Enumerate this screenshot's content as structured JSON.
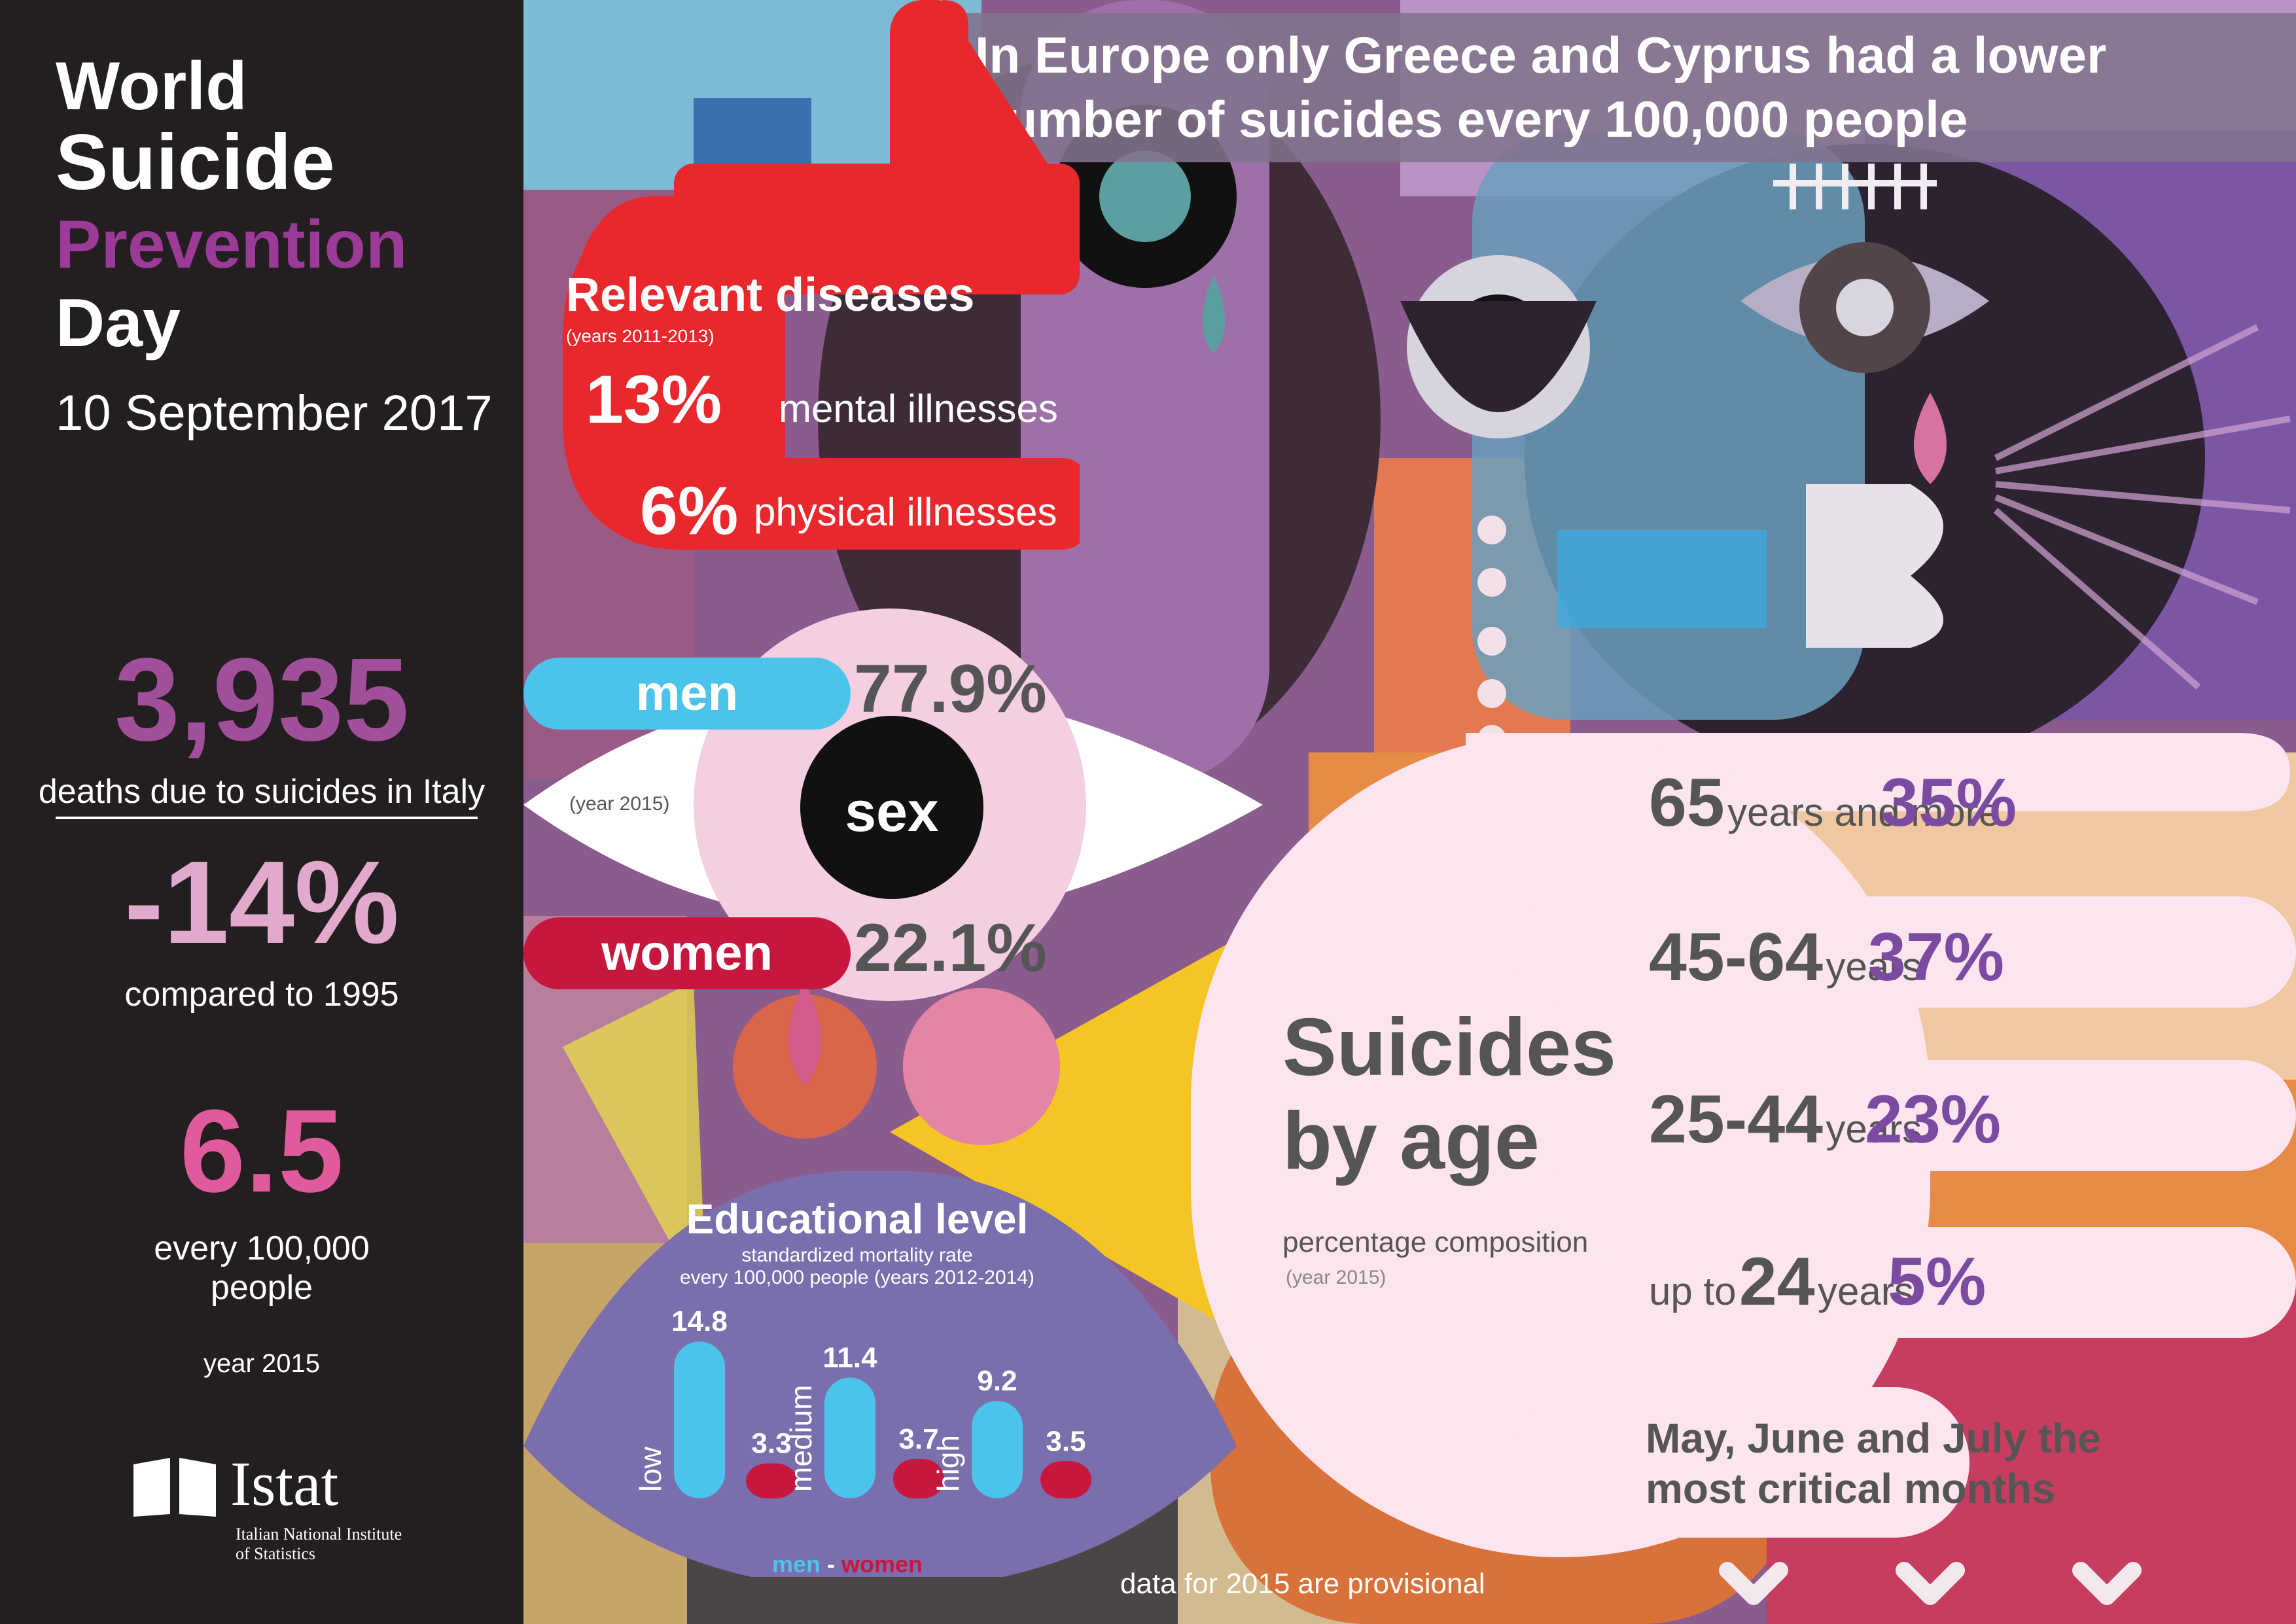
{
  "sidebar": {
    "title_line1": "World",
    "title_line2": "Suicide",
    "title_line3": "Prevention",
    "title_line4": "Day",
    "date": "10 September 2017",
    "deaths_value": "3,935",
    "deaths_label": "deaths due to suicides in Italy",
    "change_value": "-14%",
    "change_label": "compared to 1995",
    "rate_value": "6.5",
    "rate_label_line1": "every 100,000",
    "rate_label_line2": "people",
    "rate_year": "year 2015",
    "logo_name": "Istat",
    "logo_sub_line1": "Italian National Institute",
    "logo_sub_line2": "of Statistics"
  },
  "headline": {
    "line1": "In Europe only Greece and Cyprus had a lower",
    "line2": "number of suicides every 100,000 people"
  },
  "diseases": {
    "title": "Relevant diseases",
    "years": "(years 2011-2013)",
    "mental_value": "13%",
    "mental_label": "mental illnesses",
    "physical_value": "6%",
    "physical_label": "physical illnesses"
  },
  "sex": {
    "center_label": "sex",
    "year": "(year 2015)",
    "men_label": "men",
    "men_value": "77.9%",
    "women_label": "women",
    "women_value": "22.1%"
  },
  "education": {
    "title": "Educational level",
    "subtitle_line1": "standardized mortality rate",
    "subtitle_line2": "every 100,000 people (years 2012-2014)",
    "legend_men": "men",
    "legend_sep": " - ",
    "legend_women": "women",
    "colors": {
      "men": "#4cc3ea",
      "women": "#c8173f"
    }
  },
  "age": {
    "title_line1": "Suicides",
    "title_line2": "by age",
    "subtitle": "percentage composition",
    "year": "(year 2015)",
    "rows": [
      {
        "num": "65",
        "suffix": "years and more",
        "prefix": "",
        "pct": "35%"
      },
      {
        "num": "45-64",
        "suffix": "years",
        "prefix": "",
        "pct": "37%"
      },
      {
        "num": "25-44",
        "suffix": "years",
        "prefix": "",
        "pct": "23%"
      },
      {
        "num": "24",
        "suffix": "years",
        "prefix": "up to",
        "pct": "5%"
      }
    ],
    "critical_line1": "May, June and July the",
    "critical_line2": "most critical months"
  },
  "footer": {
    "note": "data for 2015 are provisional"
  },
  "chart_data": {
    "type": "bar",
    "categories": [
      "low",
      "medium",
      "high"
    ],
    "series": [
      {
        "name": "men",
        "values": [
          14.8,
          11.4,
          9.2
        ]
      },
      {
        "name": "women",
        "values": [
          3.3,
          3.7,
          3.5
        ]
      }
    ],
    "title": "Educational level",
    "subtitle": "standardized mortality rate every 100,000 people (years 2012-2014)"
  }
}
